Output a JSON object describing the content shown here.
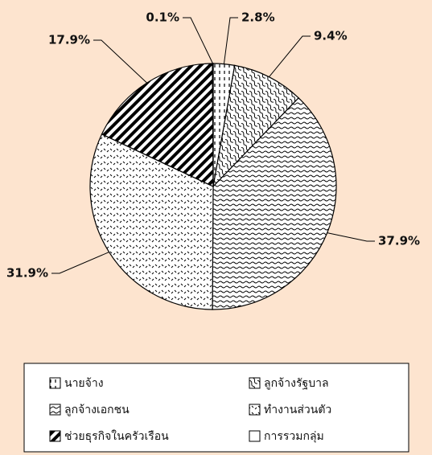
{
  "chart_data": {
    "type": "pie",
    "categories": [
      "นายจ้าง",
      "ลูกจ้างรัฐบาล",
      "ลูกจ้างเอกชน",
      "ทำงานส่วนตัว",
      "ช่วยธุรกิจในครัวเรือน",
      "การรวมกลุ่ม"
    ],
    "values": [
      2.8,
      9.4,
      37.9,
      31.9,
      17.9,
      0.1
    ],
    "value_labels": [
      "2.8%",
      "9.4%",
      "37.9%",
      "31.9%",
      "17.9%",
      "0.1%"
    ],
    "legend": "bottom"
  }
}
